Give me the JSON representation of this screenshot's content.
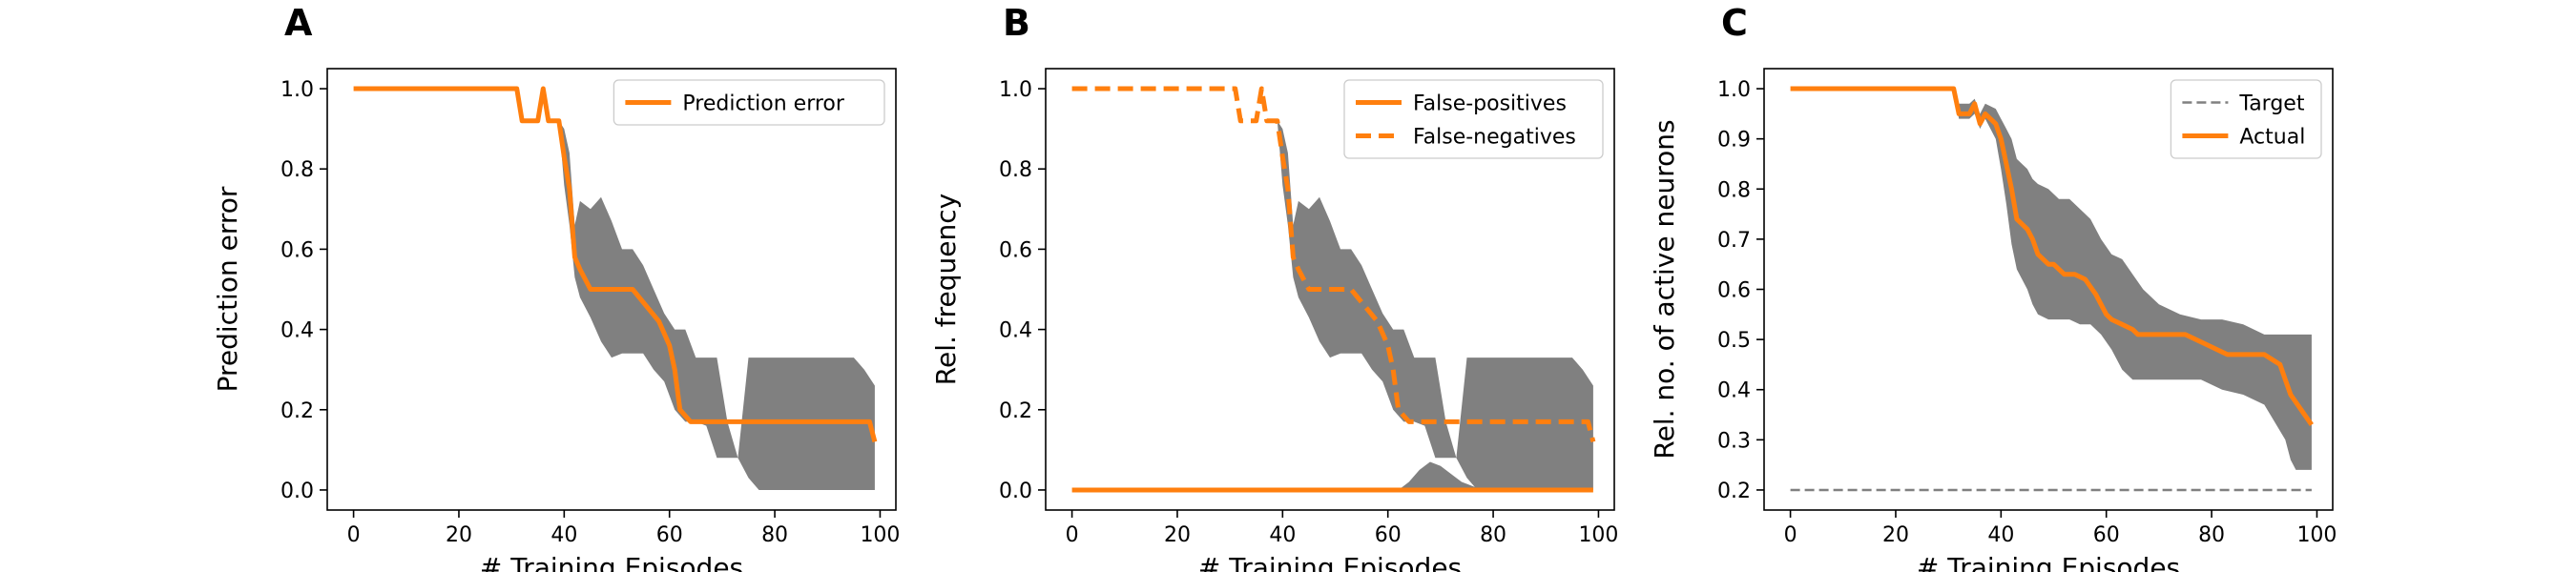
{
  "colors": {
    "line": "#ff7f0e",
    "band": "#808080",
    "target": "#808080",
    "axis": "#000000"
  },
  "chart_data": [
    {
      "panel": "A",
      "type": "line",
      "xlabel": "# Training Episodes",
      "ylabel": "Prediction error",
      "xlim": [
        -5,
        103
      ],
      "ylim": [
        -0.05,
        1.05
      ],
      "xticks": [
        0,
        20,
        40,
        60,
        80,
        100
      ],
      "yticks": [
        0.0,
        0.2,
        0.4,
        0.6,
        0.8,
        1.0
      ],
      "ytick_decimals": 1,
      "legend_position": "top-right",
      "series": [
        {
          "name": "Prediction error",
          "style": "solid",
          "x": [
            0,
            31,
            32,
            35,
            36,
            37,
            39,
            40,
            41,
            42,
            43,
            45,
            52,
            53,
            58,
            60,
            61,
            62,
            64,
            65,
            98,
            99
          ],
          "y": [
            1.0,
            1.0,
            0.92,
            0.92,
            1.0,
            0.92,
            0.92,
            0.83,
            0.75,
            0.58,
            0.55,
            0.5,
            0.5,
            0.5,
            0.42,
            0.36,
            0.3,
            0.2,
            0.17,
            0.17,
            0.17,
            0.12
          ]
        }
      ],
      "bands": [
        {
          "x": [
            0,
            31,
            32,
            35,
            36,
            37,
            39,
            40,
            41,
            42,
            43,
            45,
            47,
            49,
            51,
            53,
            55,
            57,
            59,
            61,
            63,
            65,
            67,
            69,
            71,
            73,
            75,
            77,
            79,
            81,
            83,
            85,
            87,
            89,
            91,
            93,
            95,
            97,
            99
          ],
          "lower": [
            1.0,
            1.0,
            0.92,
            0.92,
            1.0,
            0.92,
            0.92,
            0.76,
            0.66,
            0.53,
            0.48,
            0.43,
            0.37,
            0.33,
            0.34,
            0.34,
            0.34,
            0.3,
            0.27,
            0.2,
            0.17,
            0.17,
            0.16,
            0.08,
            0.08,
            0.08,
            0.03,
            0.0,
            0.0,
            0.0,
            0.0,
            0.0,
            0.0,
            0.0,
            0.0,
            0.0,
            0.0,
            0.0,
            0.0
          ],
          "upper": [
            1.0,
            1.0,
            0.92,
            0.92,
            1.0,
            0.92,
            0.92,
            0.9,
            0.84,
            0.66,
            0.72,
            0.7,
            0.73,
            0.67,
            0.6,
            0.6,
            0.56,
            0.5,
            0.44,
            0.4,
            0.4,
            0.33,
            0.33,
            0.33,
            0.17,
            0.08,
            0.33,
            0.33,
            0.33,
            0.33,
            0.33,
            0.33,
            0.33,
            0.33,
            0.33,
            0.33,
            0.33,
            0.3,
            0.26
          ]
        }
      ]
    },
    {
      "panel": "B",
      "type": "line",
      "xlabel": "# Training Episodes",
      "ylabel": "Rel. frequency",
      "xlim": [
        -5,
        103
      ],
      "ylim": [
        -0.05,
        1.05
      ],
      "xticks": [
        0,
        20,
        40,
        60,
        80,
        100
      ],
      "yticks": [
        0.0,
        0.2,
        0.4,
        0.6,
        0.8,
        1.0
      ],
      "ytick_decimals": 1,
      "legend_position": "top-right",
      "series": [
        {
          "name": "False-positives",
          "style": "solid",
          "x": [
            0,
            99
          ],
          "y": [
            0.0,
            0.0
          ]
        },
        {
          "name": "False-negatives",
          "style": "dashed",
          "x": [
            0,
            31,
            32,
            35,
            36,
            37,
            39,
            40,
            41,
            42,
            43,
            45,
            52,
            53,
            58,
            60,
            61,
            62,
            64,
            65,
            98,
            99
          ],
          "y": [
            1.0,
            1.0,
            0.92,
            0.92,
            1.0,
            0.92,
            0.92,
            0.83,
            0.75,
            0.58,
            0.55,
            0.5,
            0.5,
            0.5,
            0.42,
            0.36,
            0.3,
            0.2,
            0.17,
            0.17,
            0.17,
            0.12
          ]
        }
      ],
      "bands": [
        {
          "x": [
            0,
            31,
            32,
            35,
            36,
            37,
            39,
            40,
            41,
            42,
            43,
            45,
            47,
            49,
            51,
            53,
            55,
            57,
            59,
            61,
            63,
            65,
            67,
            69,
            71,
            73,
            75,
            77,
            79,
            81,
            83,
            85,
            87,
            89,
            91,
            93,
            95,
            97,
            99
          ],
          "lower": [
            1.0,
            1.0,
            0.92,
            0.92,
            1.0,
            0.92,
            0.92,
            0.76,
            0.66,
            0.53,
            0.48,
            0.43,
            0.37,
            0.33,
            0.34,
            0.34,
            0.34,
            0.3,
            0.27,
            0.2,
            0.17,
            0.17,
            0.16,
            0.08,
            0.08,
            0.08,
            0.03,
            0.0,
            0.0,
            0.0,
            0.0,
            0.0,
            0.0,
            0.0,
            0.0,
            0.0,
            0.0,
            0.0,
            0.0
          ],
          "upper": [
            1.0,
            1.0,
            0.92,
            0.92,
            1.0,
            0.92,
            0.92,
            0.9,
            0.84,
            0.66,
            0.72,
            0.7,
            0.73,
            0.67,
            0.6,
            0.6,
            0.56,
            0.5,
            0.44,
            0.4,
            0.4,
            0.33,
            0.33,
            0.33,
            0.17,
            0.08,
            0.33,
            0.33,
            0.33,
            0.33,
            0.33,
            0.33,
            0.33,
            0.33,
            0.33,
            0.33,
            0.33,
            0.3,
            0.26
          ]
        },
        {
          "x": [
            0,
            62,
            64,
            66,
            68,
            70,
            72,
            74,
            76,
            78,
            80,
            99
          ],
          "lower": [
            0.0,
            0.0,
            0.0,
            0.0,
            0.0,
            0.0,
            0.0,
            0.0,
            0.0,
            0.0,
            0.0,
            0.0
          ],
          "upper": [
            0.0,
            0.0,
            0.02,
            0.05,
            0.07,
            0.06,
            0.04,
            0.02,
            0.01,
            0.0,
            0.0,
            0.0
          ]
        }
      ]
    },
    {
      "panel": "C",
      "type": "line",
      "xlabel": "# Training Episodes",
      "ylabel": "Rel. no. of active neurons",
      "xlim": [
        -5,
        103
      ],
      "ylim": [
        0.16,
        1.04
      ],
      "xticks": [
        0,
        20,
        40,
        60,
        80,
        100
      ],
      "yticks": [
        0.2,
        0.3,
        0.4,
        0.5,
        0.6,
        0.7,
        0.8,
        0.9,
        1.0
      ],
      "ytick_decimals": 1,
      "legend_position": "top-right",
      "series": [
        {
          "name": "Target",
          "style": "dashed-thin",
          "x": [
            0,
            99
          ],
          "y": [
            0.2,
            0.2
          ]
        },
        {
          "name": "Actual",
          "style": "solid",
          "x": [
            0,
            31,
            32,
            34,
            35,
            36,
            37,
            39,
            40,
            41,
            42,
            43,
            45,
            46,
            47,
            49,
            50,
            52,
            54,
            56,
            58,
            60,
            61,
            63,
            65,
            66,
            68,
            70,
            75,
            79,
            83,
            87,
            90,
            93,
            94,
            95,
            97,
            99
          ],
          "y": [
            1.0,
            1.0,
            0.95,
            0.95,
            0.97,
            0.93,
            0.95,
            0.93,
            0.9,
            0.85,
            0.8,
            0.74,
            0.72,
            0.7,
            0.67,
            0.65,
            0.65,
            0.63,
            0.63,
            0.62,
            0.59,
            0.55,
            0.54,
            0.53,
            0.52,
            0.51,
            0.51,
            0.51,
            0.51,
            0.49,
            0.47,
            0.47,
            0.47,
            0.45,
            0.42,
            0.39,
            0.36,
            0.33
          ]
        }
      ],
      "bands": [
        {
          "x": [
            0,
            31,
            32,
            34,
            35,
            36,
            37,
            39,
            40,
            41,
            42,
            43,
            45,
            46,
            47,
            49,
            51,
            53,
            55,
            57,
            59,
            61,
            63,
            65,
            67,
            70,
            74,
            78,
            82,
            86,
            90,
            94,
            95,
            96,
            97,
            98,
            99
          ],
          "lower": [
            1.0,
            1.0,
            0.94,
            0.94,
            0.95,
            0.92,
            0.94,
            0.9,
            0.84,
            0.77,
            0.69,
            0.64,
            0.6,
            0.57,
            0.55,
            0.54,
            0.54,
            0.54,
            0.53,
            0.53,
            0.51,
            0.48,
            0.44,
            0.42,
            0.42,
            0.42,
            0.42,
            0.42,
            0.4,
            0.39,
            0.37,
            0.3,
            0.26,
            0.24,
            0.24,
            0.24,
            0.24
          ],
          "upper": [
            1.0,
            1.0,
            0.97,
            0.97,
            0.98,
            0.95,
            0.97,
            0.96,
            0.94,
            0.92,
            0.9,
            0.86,
            0.84,
            0.82,
            0.81,
            0.8,
            0.78,
            0.78,
            0.76,
            0.74,
            0.7,
            0.67,
            0.66,
            0.63,
            0.6,
            0.57,
            0.55,
            0.54,
            0.54,
            0.53,
            0.51,
            0.51,
            0.51,
            0.51,
            0.51,
            0.51,
            0.51
          ]
        }
      ]
    }
  ]
}
